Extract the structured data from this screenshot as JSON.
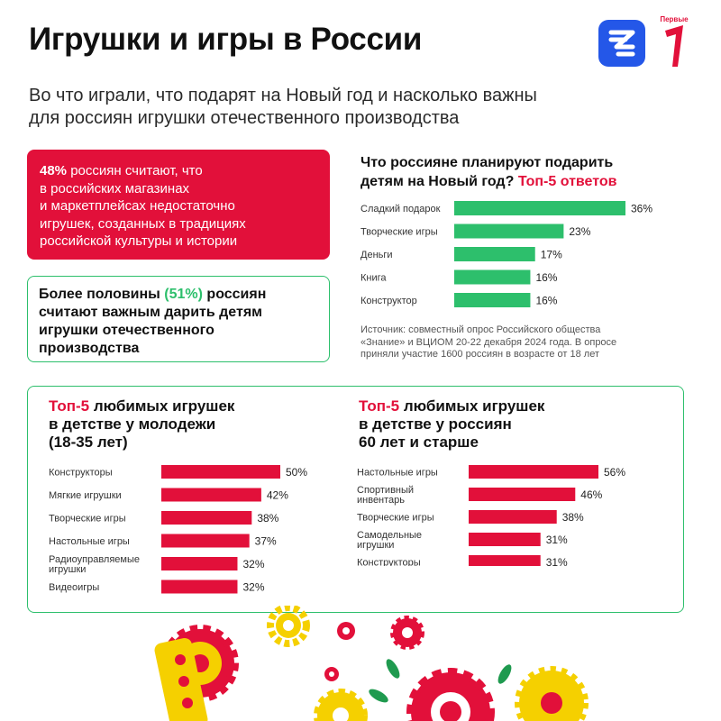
{
  "page": {
    "title": "Игрушки и игры в России",
    "subtitle_lines": [
      "Во что играли, что подарят на Новый год и насколько важны",
      "для россиян игрушки отечественного производства"
    ]
  },
  "logos": {
    "znanie": "znanie-logo",
    "pervye": {
      "text": "Первые"
    }
  },
  "red_card": {
    "pct": "48%",
    "lines": [
      " россиян считают, что",
      "в российских магазинах",
      "и маркетплейсах недостаточно",
      "игрушек, созданных в традициях",
      "российской культуры и истории"
    ]
  },
  "green_card": {
    "line1_prefix": "Более половины ",
    "line1_pct": "(51%)",
    "line1_suffix": " россиян",
    "lines": [
      "считают важным дарить детям",
      "игрушки отечественного",
      "производства"
    ]
  },
  "gift_block": {
    "title_line1": "Что россияне планируют подарить",
    "title_line2_prefix": "детям на Новый год? ",
    "title_line2_highlight": "Топ-5 ответов"
  },
  "source": {
    "lines": [
      "Источник: совместный опрос Российского общества",
      "«Знание» и ВЦИОМ 20-22 декабря 2024 года. В опросе",
      "приняли участие 1600 россиян в возрасте от 18 лет"
    ]
  },
  "young_block": {
    "title_hl": "Топ-5",
    "title_rest": " любимых игрушек",
    "title_lines": [
      "в детстве у молодежи",
      "(18-35 лет)"
    ]
  },
  "old_block": {
    "title_hl": "Топ-5",
    "title_rest": " любимых игрушек",
    "title_lines": [
      "в детстве у россиян",
      "60 лет и старше"
    ]
  },
  "colors": {
    "red": "#e2103a",
    "green": "#2dbf6c",
    "yellow": "#f5d000",
    "dark_green": "#1f9a4f"
  },
  "chart_data": [
    {
      "type": "bar",
      "orientation": "horizontal",
      "categories": [
        [
          "Сладкий подарок"
        ],
        [
          "Творческие игры"
        ],
        [
          "Деньги"
        ],
        [
          "Книга"
        ],
        [
          "Конструктор"
        ]
      ],
      "values": [
        36,
        23,
        17,
        16,
        16
      ],
      "labels": [
        "36%",
        "23%",
        "17%",
        "16%",
        "16%"
      ],
      "color": "#2dbf6c",
      "xlim": [
        0,
        36
      ]
    },
    {
      "type": "bar",
      "orientation": "horizontal",
      "categories": [
        [
          "Конструкторы"
        ],
        [
          "Мягкие игрушки"
        ],
        [
          "Творческие игры"
        ],
        [
          "Настольные игры"
        ],
        [
          "Радиоуправляемые",
          "игрушки"
        ],
        [
          "Видеоигры"
        ]
      ],
      "values": [
        50,
        42,
        38,
        37,
        32,
        32
      ],
      "labels": [
        "50%",
        "42%",
        "38%",
        "37%",
        "32%",
        "32%"
      ],
      "color": "#e2103a",
      "xlim": [
        0,
        50
      ]
    },
    {
      "type": "bar",
      "orientation": "horizontal",
      "categories": [
        [
          "Настольные игры"
        ],
        [
          "Спортивный",
          "инвентарь"
        ],
        [
          "Творческие игры"
        ],
        [
          "Самодельные",
          "игрушки"
        ],
        [
          "Конструкторы"
        ]
      ],
      "values": [
        56,
        46,
        38,
        31,
        31
      ],
      "labels": [
        "56%",
        "46%",
        "38%",
        "31%",
        "31%"
      ],
      "color": "#e2103a",
      "xlim": [
        0,
        56
      ]
    }
  ]
}
